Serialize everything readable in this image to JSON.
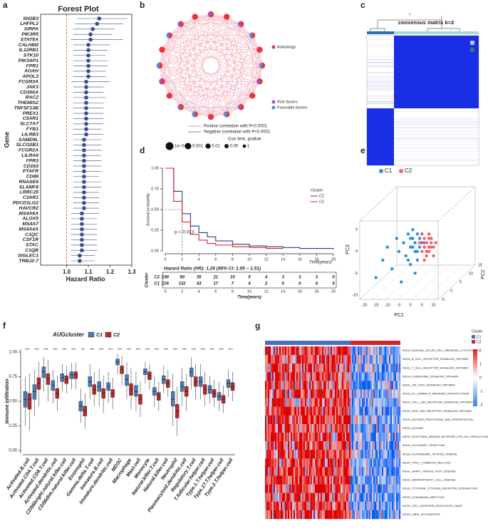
{
  "panels": [
    "a",
    "b",
    "c",
    "d",
    "e",
    "f",
    "g"
  ],
  "network": {
    "legend": [
      "Autophagy",
      "Risk factors",
      "Favorable factors"
    ],
    "lines": [
      "Postive correlation with P<0.0001",
      "Negative correlation with P<0.0001"
    ],
    "size_title": "Cox test, pvalue",
    "sizes": [
      "1e−04",
      "0.001",
      "0.01",
      "0.05",
      "1"
    ]
  },
  "consensus": {
    "title": "consensus matrix k=2",
    "legend": [
      "1",
      "2"
    ]
  },
  "pathway_heatmap": {
    "legend_title": "Cluster",
    "legend": [
      "C1",
      "C2"
    ],
    "scale": [
      "2",
      "1",
      "0",
      "-1",
      "-2"
    ],
    "rows": [
      "KEGG_NATURAL_KILLER_CELL_MEDIATED_CYTOTOXICITY",
      "KEGG_B_CELL_RECEPTOR_SIGNALING_PATHWAY",
      "KEGG_T_CELL_RECEPTOR_SIGNALING_PATHWAY",
      "KEGG_CHEMOKINE_SIGNALING_PATHWAY",
      "KEGG_JAK_STAT_SIGNALING_PATHWAY",
      "KEGG_FC_GAMMA_R_MEDIATED_PHAGOCYTOSIS",
      "KEGG_TOLL_LIKE_RECEPTOR_SIGNALING_PATHWAY",
      "KEGG_NOD_LIKE_RECEPTOR_SIGNALING_PATHWAY",
      "KEGG_ANTIGEN_PROCESSING_AND_PRESENTATION",
      "KEGG_ASTHMA",
      "KEGG_INTESTINAL_IMMUNE_NETWORK_FOR_IGA_PRODUCTION",
      "KEGG_ALLOGRAFT_REJECTION",
      "KEGG_AUTOIMMUNE_THYROID_DISEASE",
      "KEGG_TYPE_I_DIABETES_MELLITUS",
      "KEGG_GRAFT_VERSUS_HOST_DISEASE",
      "KEGG_HEMATOPOIETIC_CELL_LINEAGE",
      "KEGG_CYTOKINE_CYTOKINE_RECEPTOR_INTERACTION",
      "KEGG_LEISHMANIA_INFECTION",
      "KEGG_CELL_ADHESION_MOLECULES_CAMS",
      "KEGG_VIRAL_MYOCARDITIS"
    ]
  },
  "chart_data": [
    {
      "type": "forest",
      "title": "Forest Plot",
      "x_label": "Hazard Ratio",
      "y_label": "Gene",
      "color": "#3b4f88",
      "ref_color": "#d62728",
      "categories": [
        "SH2B3",
        "LHFPL2",
        "SIRPA",
        "PIK3R5",
        "STAT5A",
        "CALHM2",
        "IL12RB1",
        "STK10",
        "PIK3AP1",
        "FPR1",
        "AOAH",
        "APOL3",
        "FCGR3A",
        "JAK3",
        "CD300A",
        "RAC2",
        "THEMIS2",
        "TNFSF13B",
        "PREX1",
        "C5AR1",
        "SLC7A7",
        "FYB1",
        "LILRB3",
        "SAMD9L",
        "SLCO2B1",
        "FCGR2A",
        "LILRA6",
        "FPR3",
        "CD163",
        "PTAFR",
        "CD86",
        "RNASE6",
        "SLAMF8",
        "LRRC25",
        "C3AR1",
        "PDCD1LG2",
        "HAVCR2",
        "MS4A6A",
        "ALOX5",
        "MS4A7",
        "MS4A4A",
        "C1QC",
        "CSF1R",
        "STAC",
        "C1QB",
        "SIGLEC1",
        "TRBJ2-7"
      ],
      "values": [
        1.15,
        1.14,
        1.12,
        1.11,
        1.11,
        1.1,
        1.1,
        1.1,
        1.1,
        1.1,
        1.1,
        1.1,
        1.09,
        1.09,
        1.09,
        1.09,
        1.09,
        1.09,
        1.09,
        1.09,
        1.09,
        1.09,
        1.09,
        1.08,
        1.08,
        1.08,
        1.08,
        1.08,
        1.08,
        1.08,
        1.08,
        1.08,
        1.08,
        1.08,
        1.08,
        1.08,
        1.08,
        1.07,
        1.07,
        1.07,
        1.07,
        1.07,
        1.07,
        1.07,
        1.07,
        1.06,
        1.06
      ],
      "lower": [
        1.05,
        1.04,
        1.03,
        1.03,
        1.02,
        1.03,
        1.03,
        1.03,
        1.03,
        1.03,
        1.03,
        1.03,
        1.02,
        1.03,
        1.03,
        1.03,
        1.03,
        1.03,
        1.03,
        1.03,
        1.03,
        1.03,
        1.03,
        1.03,
        1.03,
        1.03,
        1.03,
        1.03,
        1.03,
        1.03,
        1.03,
        1.03,
        1.03,
        1.03,
        1.03,
        1.03,
        1.03,
        1.02,
        1.02,
        1.02,
        1.02,
        1.02,
        1.02,
        1.02,
        1.02,
        1.02,
        1.02
      ],
      "upper": [
        1.28,
        1.26,
        1.22,
        1.21,
        1.26,
        1.2,
        1.19,
        1.18,
        1.19,
        1.19,
        1.18,
        1.18,
        1.2,
        1.17,
        1.17,
        1.18,
        1.17,
        1.17,
        1.17,
        1.17,
        1.17,
        1.16,
        1.17,
        1.16,
        1.16,
        1.16,
        1.16,
        1.16,
        1.16,
        1.16,
        1.15,
        1.16,
        1.16,
        1.15,
        1.15,
        1.15,
        1.15,
        1.15,
        1.14,
        1.14,
        1.14,
        1.14,
        1.14,
        1.14,
        1.14,
        1.13,
        1.13
      ],
      "xlim": [
        0.88,
        1.3
      ],
      "xticks": [
        {
          "value": 1,
          "label": "1.0"
        },
        1.1,
        1.2,
        1.3
      ]
    },
    {
      "type": "survival",
      "y_label": "Survival probability",
      "x_label": "Time(years)",
      "legend_title": "Cluster",
      "annotation": "p = 0.013",
      "hr_text": "Hazard Ratio (HR): 1.26 (95% CI: 1.05 − 1.51)",
      "x": [
        0,
        1,
        2,
        3,
        4,
        5,
        6,
        8,
        10,
        12,
        14,
        16,
        18,
        20
      ],
      "series": [
        {
          "name": "C2",
          "color": "#2b3a7a",
          "values": [
            1.0,
            0.72,
            0.45,
            0.3,
            0.22,
            0.17,
            0.12,
            0.08,
            0.06,
            0.05,
            0.04,
            0.03,
            0.03,
            0.02
          ]
        },
        {
          "name": "C1",
          "color": "#d62728",
          "values": [
            1.0,
            0.6,
            0.35,
            0.2,
            0.13,
            0.09,
            0.07,
            0.05,
            0.04,
            0.03,
            0.03,
            null,
            null,
            null
          ]
        }
      ],
      "xlim": [
        0,
        20
      ],
      "xticks": [
        0,
        2,
        4,
        6,
        8,
        10,
        12,
        14,
        16,
        18,
        20
      ],
      "ylim": [
        0,
        1
      ],
      "yticks": [
        {
          "value": 0,
          "label": "0.00"
        },
        0.25,
        {
          "value": 0.5,
          "label": "0.50"
        },
        0.75,
        {
          "value": 1,
          "label": "1.00"
        }
      ],
      "risk_table": {
        "y_label": "Cluster",
        "x_label": "Time(years)",
        "rows": [
          {
            "name": "C2",
            "counts": [
              "190",
              "90",
              "35",
              "21",
              "10",
              "5",
              "4",
              "3",
              "3",
              "3",
              "0"
            ]
          },
          {
            "name": "C1",
            "counts": [
              "226",
              "132",
              "43",
              "17",
              "7",
              "4",
              "2",
              "0",
              "0",
              "0",
              "0"
            ]
          }
        ]
      }
    },
    {
      "type": "box",
      "legend_title": "AUGcluster",
      "y_label": "Immune infiltration",
      "categories": [
        "Activated.B.cell",
        "Activated.CD4.T.cell",
        "Activated.CD8.T.cell",
        "Activated.dendritic.cell",
        "CD56bright.natural.killer.cell",
        "CD56dim.natural.killer.cell",
        "Eosinophil",
        "Gamma.delta.T.cell",
        "Immature.B.cell",
        "Immature.dendritic.cell",
        "MDSC",
        "Macrophage",
        "Mast.cell",
        "Monocyte",
        "Natural.killer.T.cell",
        "Natural.killer.cell",
        "Neutrophil",
        "Plasmacytoid.dendritic.cell",
        "Regulatory.T.cell",
        "T.follicular.helper.cell",
        "Type.1.T.helper.cell",
        "Type.17.T.helper.cell",
        "Type.2.T.helper.cell"
      ],
      "significance": [
        "***",
        "***",
        "***",
        "***",
        "***",
        "***",
        "**",
        "***",
        "***",
        "***",
        "***",
        "***",
        "***",
        "***",
        "***",
        "***",
        "***",
        "***",
        "***",
        "***",
        "***",
        "***",
        "***"
      ],
      "series": [
        {
          "name": "C1",
          "color": "#4a7ab8",
          "values": [
            [
              0.25,
              0.44,
              0.52,
              0.6,
              0.75
            ],
            [
              0.35,
              0.52,
              0.6,
              0.67,
              0.82
            ],
            [
              0.6,
              0.74,
              0.8,
              0.85,
              0.95
            ],
            [
              0.48,
              0.61,
              0.66,
              0.71,
              0.82
            ],
            [
              0.6,
              0.7,
              0.74,
              0.78,
              0.88
            ],
            [
              0.62,
              0.73,
              0.77,
              0.8,
              0.89
            ],
            [
              0.28,
              0.4,
              0.45,
              0.5,
              0.63
            ],
            [
              0.52,
              0.65,
              0.7,
              0.75,
              0.88
            ],
            [
              0.45,
              0.6,
              0.65,
              0.7,
              0.83
            ],
            [
              0.48,
              0.61,
              0.65,
              0.69,
              0.8
            ],
            [
              0.78,
              0.87,
              0.9,
              0.93,
              0.98
            ],
            [
              0.52,
              0.66,
              0.72,
              0.77,
              0.9
            ],
            [
              0.4,
              0.55,
              0.6,
              0.66,
              0.8
            ],
            [
              0.68,
              0.77,
              0.8,
              0.83,
              0.9
            ],
            [
              0.44,
              0.56,
              0.6,
              0.64,
              0.75
            ],
            [
              0.58,
              0.68,
              0.72,
              0.76,
              0.86
            ],
            [
              0.25,
              0.45,
              0.52,
              0.6,
              0.78
            ],
            [
              0.45,
              0.6,
              0.65,
              0.7,
              0.84
            ],
            [
              0.62,
              0.75,
              0.8,
              0.84,
              0.95
            ],
            [
              0.52,
              0.65,
              0.7,
              0.75,
              0.88
            ],
            [
              0.48,
              0.58,
              0.62,
              0.66,
              0.76
            ],
            [
              0.4,
              0.51,
              0.55,
              0.59,
              0.7
            ],
            [
              0.54,
              0.64,
              0.68,
              0.72,
              0.82
            ]
          ]
        },
        {
          "name": "C2",
          "color": "#b8282e",
          "values": [
            [
              0.2,
              0.42,
              0.52,
              0.58,
              0.78
            ],
            [
              0.45,
              0.62,
              0.68,
              0.74,
              0.9
            ],
            [
              0.5,
              0.67,
              0.73,
              0.78,
              0.92
            ],
            [
              0.4,
              0.53,
              0.58,
              0.63,
              0.76
            ],
            [
              0.58,
              0.68,
              0.72,
              0.76,
              0.86
            ],
            [
              0.62,
              0.73,
              0.77,
              0.8,
              0.89
            ],
            [
              0.22,
              0.35,
              0.4,
              0.45,
              0.58
            ],
            [
              0.45,
              0.57,
              0.62,
              0.67,
              0.8
            ],
            [
              0.38,
              0.53,
              0.58,
              0.63,
              0.76
            ],
            [
              0.42,
              0.54,
              0.58,
              0.62,
              0.74
            ],
            [
              0.66,
              0.78,
              0.82,
              0.86,
              0.96
            ],
            [
              0.42,
              0.56,
              0.62,
              0.68,
              0.84
            ],
            [
              0.34,
              0.47,
              0.52,
              0.57,
              0.7
            ],
            [
              0.62,
              0.72,
              0.76,
              0.8,
              0.88
            ],
            [
              0.4,
              0.51,
              0.55,
              0.59,
              0.7
            ],
            [
              0.54,
              0.64,
              0.68,
              0.72,
              0.82
            ],
            [
              0.15,
              0.33,
              0.4,
              0.47,
              0.65
            ],
            [
              0.4,
              0.55,
              0.6,
              0.65,
              0.78
            ],
            [
              0.52,
              0.65,
              0.7,
              0.75,
              0.88
            ],
            [
              0.45,
              0.57,
              0.62,
              0.67,
              0.8
            ],
            [
              0.44,
              0.54,
              0.58,
              0.62,
              0.72
            ],
            [
              0.38,
              0.48,
              0.52,
              0.56,
              0.66
            ],
            [
              0.5,
              0.61,
              0.65,
              0.69,
              0.8
            ]
          ]
        }
      ],
      "ylim": [
        0,
        1
      ],
      "yticks": [
        {
          "value": 0,
          "label": "0.00"
        },
        0.25,
        {
          "value": 0.5,
          "label": "0.50"
        },
        0.75,
        {
          "value": 1,
          "label": "1.00"
        }
      ]
    },
    {
      "type": "scatter",
      "x_label": "PC1",
      "y_label": "PC3",
      "z_label": "PC2",
      "series": [
        {
          "name": "C1",
          "color": "#2e8fd8",
          "x": [
            -15,
            -12,
            -10,
            -8,
            -6,
            -5,
            -4,
            -3,
            -2,
            -1,
            0,
            0,
            1,
            1,
            2,
            2,
            3,
            3,
            4,
            4,
            5,
            5,
            6,
            2,
            -1,
            0,
            3,
            1
          ],
          "values": [
            -6,
            -2,
            1,
            -4,
            3,
            0,
            -7,
            2,
            -1,
            4,
            1,
            -3,
            3,
            5,
            0,
            2,
            4,
            -2,
            3,
            1,
            2,
            4,
            1,
            -5,
            -2,
            3,
            0,
            1
          ]
        },
        {
          "name": "C2",
          "color": "#f0606f",
          "x": [
            4,
            5,
            6,
            6,
            7,
            7,
            8,
            8,
            9,
            9,
            10,
            10,
            5,
            6,
            7,
            8,
            9,
            11,
            6,
            8
          ],
          "values": [
            2,
            0,
            3,
            1,
            2,
            -1,
            3,
            0,
            1,
            2,
            -1,
            1,
            4,
            -2,
            0,
            4,
            3,
            2,
            2,
            1
          ]
        }
      ],
      "xlim": [
        -22,
        12
      ],
      "xticks": [
        -20,
        -15,
        -10,
        -5,
        0,
        5,
        10
      ],
      "ylim": [
        -11,
        7
      ],
      "yticks": [
        -10,
        -5,
        0,
        5
      ],
      "zticks": [
        -5,
        0,
        5,
        10,
        15
      ]
    }
  ]
}
